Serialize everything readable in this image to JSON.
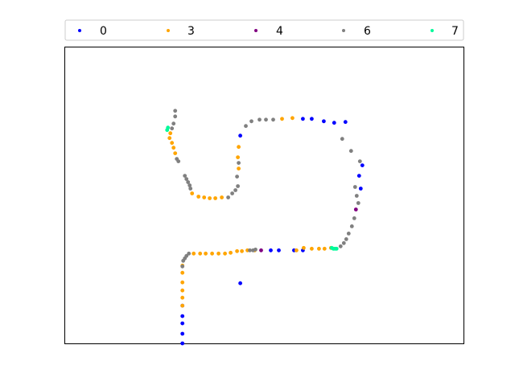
{
  "chart_data": {
    "type": "scatter",
    "title": "",
    "xlabel": "",
    "ylabel": "",
    "axes_ticks": "none",
    "grid": false,
    "legend": {
      "position": "top",
      "columns": 5
    },
    "xlim": [
      0,
      496
    ],
    "ylim": [
      0,
      369
    ],
    "series": [
      {
        "name": "0",
        "color": "#0000ff",
        "points": [
          [
            146,
            0
          ],
          [
            146,
            12
          ],
          [
            146,
            25
          ],
          [
            146,
            34
          ],
          [
            146,
            47
          ],
          [
            218,
            75
          ],
          [
            256,
            116
          ],
          [
            266,
            116
          ],
          [
            285,
            116
          ],
          [
            296,
            116
          ],
          [
            368,
            193
          ],
          [
            366,
            209
          ],
          [
            370,
            222
          ],
          [
            349,
            276
          ],
          [
            335,
            275
          ],
          [
            322,
            277
          ],
          [
            307,
            280
          ],
          [
            296,
            280
          ],
          [
            218,
            259
          ]
        ]
      },
      {
        "name": "3",
        "color": "#ffa500",
        "points": [
          [
            146,
            47
          ],
          [
            146,
            57
          ],
          [
            146,
            66
          ],
          [
            146,
            76
          ],
          [
            146,
            88
          ],
          [
            146,
            97
          ],
          [
            160,
            112
          ],
          [
            168,
            112
          ],
          [
            175,
            112
          ],
          [
            183,
            112
          ],
          [
            191,
            112
          ],
          [
            199,
            112
          ],
          [
            206,
            113
          ],
          [
            214,
            115
          ],
          [
            220,
            115
          ],
          [
            227,
            116
          ],
          [
            236,
            116
          ],
          [
            307,
            118
          ],
          [
            316,
            118
          ],
          [
            323,
            118
          ],
          [
            331,
            119
          ],
          [
            297,
            119
          ],
          [
            288,
            116
          ],
          [
            131,
            262
          ],
          [
            130,
            256
          ],
          [
            133,
            250
          ],
          [
            135,
            244
          ],
          [
            137,
            237
          ],
          [
            158,
            187
          ],
          [
            166,
            183
          ],
          [
            173,
            182
          ],
          [
            180,
            181
          ],
          [
            187,
            181
          ],
          [
            195,
            182
          ],
          [
            216,
            218
          ],
          [
            215,
            232
          ],
          [
            216,
            245
          ],
          [
            270,
            280
          ],
          [
            283,
            281
          ]
        ]
      },
      {
        "name": "4",
        "color": "#800080",
        "points": [
          [
            244,
            116
          ],
          [
            362,
            167
          ]
        ]
      },
      {
        "name": "6",
        "color": "#808080",
        "points": [
          [
            146,
            96
          ],
          [
            147,
            103
          ],
          [
            149,
            106
          ],
          [
            151,
            109
          ],
          [
            154,
            112
          ],
          [
            230,
            116
          ],
          [
            234,
            116
          ],
          [
            237,
            117
          ],
          [
            343,
            121
          ],
          [
            347,
            125
          ],
          [
            350,
            130
          ],
          [
            353,
            137
          ],
          [
            357,
            146
          ],
          [
            360,
            156
          ],
          [
            365,
            175
          ],
          [
            363,
            184
          ],
          [
            361,
            195
          ],
          [
            367,
            227
          ],
          [
            356,
            240
          ],
          [
            345,
            255
          ],
          [
            225,
            271
          ],
          [
            232,
            277
          ],
          [
            242,
            279
          ],
          [
            250,
            279
          ],
          [
            259,
            279
          ],
          [
            208,
            187
          ],
          [
            212,
            191
          ],
          [
            215,
            196
          ],
          [
            214,
            208
          ],
          [
            216,
            225
          ],
          [
            203,
            182
          ],
          [
            149,
            209
          ],
          [
            151,
            205
          ],
          [
            153,
            201
          ],
          [
            155,
            197
          ],
          [
            156,
            193
          ],
          [
            139,
            230
          ],
          [
            141,
            227
          ],
          [
            137,
            290
          ],
          [
            137,
            283
          ],
          [
            133,
            268
          ],
          [
            135,
            274
          ]
        ]
      },
      {
        "name": "7",
        "color": "#00fa9a",
        "points": [
          [
            127,
            266
          ],
          [
            128,
            269
          ],
          [
            332,
            119
          ],
          [
            334,
            118
          ],
          [
            336,
            118
          ],
          [
            338,
            118
          ]
        ]
      }
    ]
  }
}
